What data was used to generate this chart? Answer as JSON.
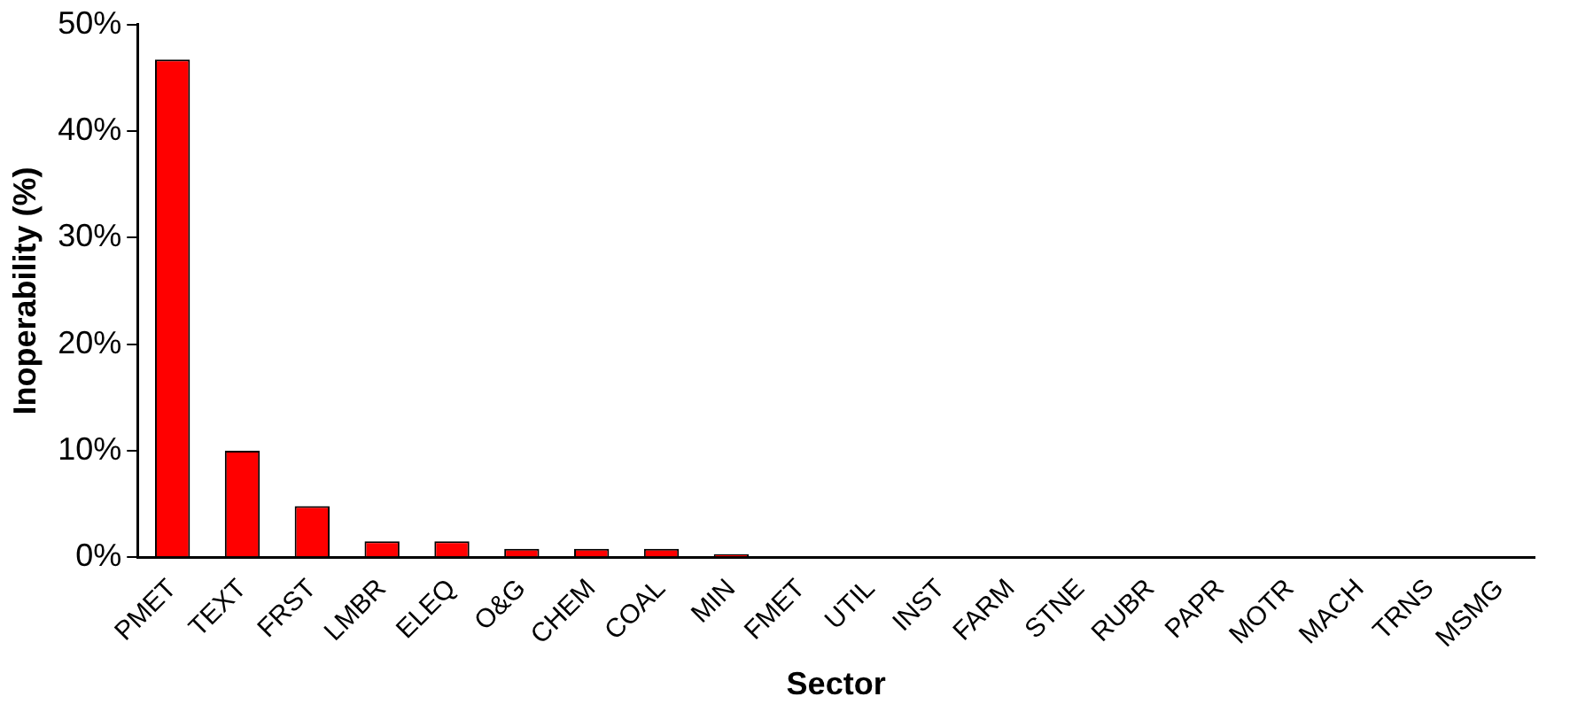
{
  "chart_data": {
    "type": "bar",
    "xlabel": "Sector",
    "ylabel": "Inoperability (%)",
    "categories": [
      "PMET",
      "TEXT",
      "FRST",
      "LMBR",
      "ELEQ",
      "O&G",
      "CHEM",
      "COAL",
      "MIN",
      "FMET",
      "UTIL",
      "INST",
      "FARM",
      "STNE",
      "RUBR",
      "PAPR",
      "MOTR",
      "MACH",
      "TRNS",
      "MSMG"
    ],
    "values": [
      46.7,
      10,
      4.8,
      1.5,
      1.5,
      0.8,
      0.8,
      0.8,
      0.3,
      0,
      0,
      0,
      0,
      0,
      0,
      0,
      0,
      0,
      0,
      0
    ],
    "color": "#ff0000",
    "ylim": [
      0,
      50
    ],
    "yticks": [
      {
        "value": 0,
        "label": "0%"
      },
      {
        "value": 10,
        "label": "10%"
      },
      {
        "value": 20,
        "label": "20%"
      },
      {
        "value": 30,
        "label": "30%"
      },
      {
        "value": 40,
        "label": "40%"
      },
      {
        "value": 50,
        "label": "50%"
      }
    ],
    "grid": false,
    "legend": false
  }
}
